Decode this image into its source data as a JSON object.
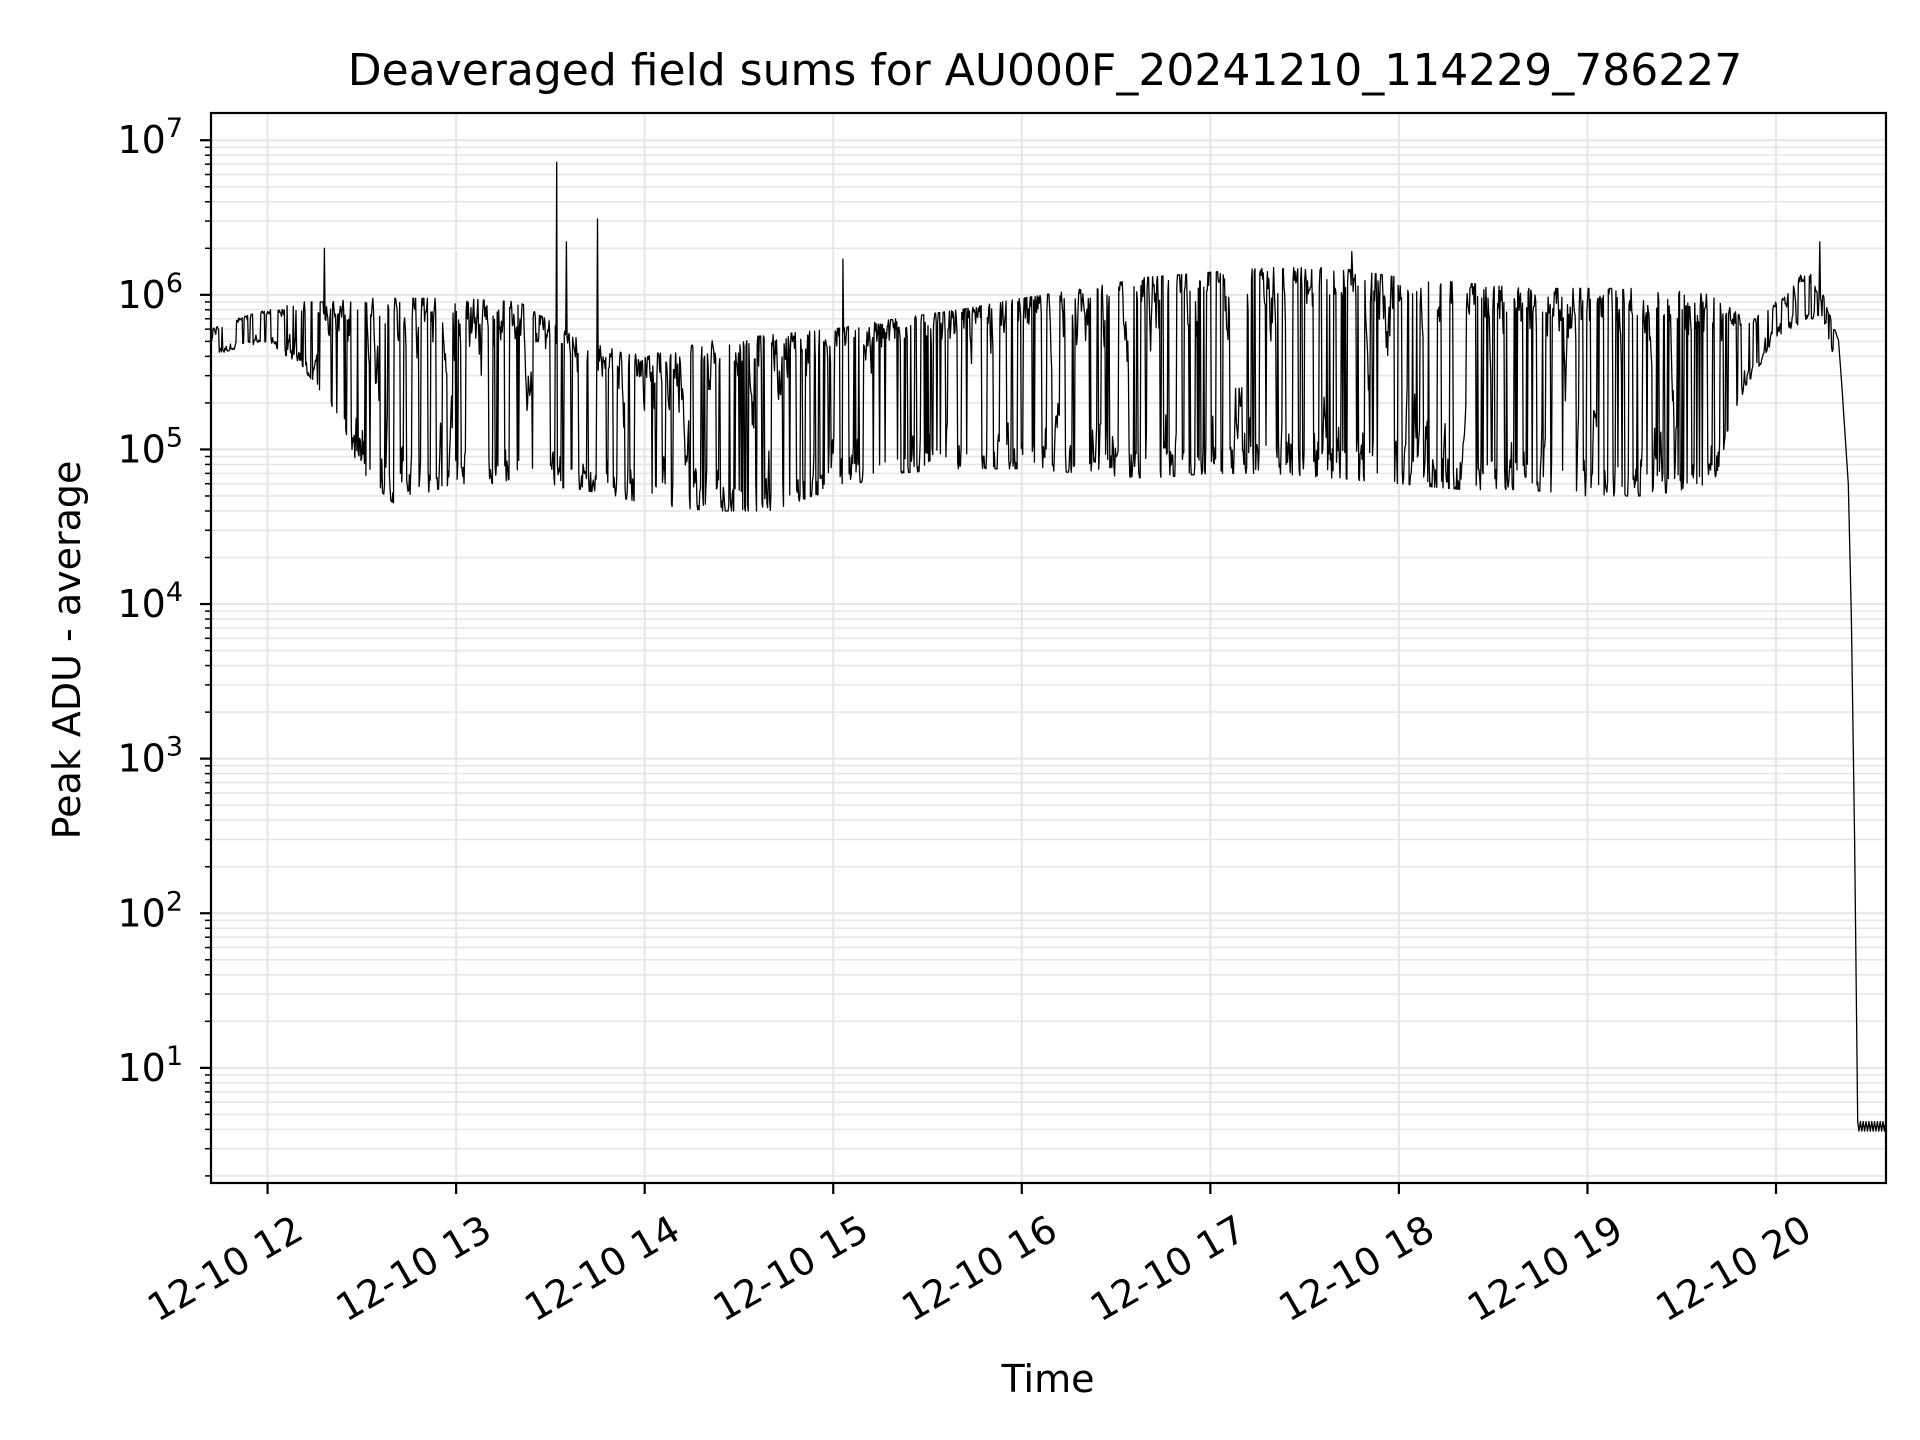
{
  "chart_data": {
    "type": "line",
    "title": "Deaveraged field sums for AU000F_20241210_114229_786227",
    "xlabel": "Time",
    "ylabel": "Peak ADU - average",
    "yscale": "log",
    "ylim": [
      1.8,
      15000000
    ],
    "xlim": [
      "2024-12-10 11:42",
      "2024-12-10 20:35"
    ],
    "grid": "on (major and minor)",
    "legend": "none",
    "x_ticks": [
      {
        "value": "2024-12-10 12:00",
        "label": "12-10 12"
      },
      {
        "value": "2024-12-10 13:00",
        "label": "12-10 13"
      },
      {
        "value": "2024-12-10 14:00",
        "label": "12-10 14"
      },
      {
        "value": "2024-12-10 15:00",
        "label": "12-10 15"
      },
      {
        "value": "2024-12-10 16:00",
        "label": "12-10 16"
      },
      {
        "value": "2024-12-10 17:00",
        "label": "12-10 17"
      },
      {
        "value": "2024-12-10 18:00",
        "label": "12-10 18"
      },
      {
        "value": "2024-12-10 19:00",
        "label": "12-10 19"
      },
      {
        "value": "2024-12-10 20:00",
        "label": "12-10 20"
      }
    ],
    "y_ticks": [
      {
        "value": 10,
        "base": "10",
        "exp": "1"
      },
      {
        "value": 100,
        "base": "10",
        "exp": "2"
      },
      {
        "value": 1000,
        "base": "10",
        "exp": "3"
      },
      {
        "value": 10000,
        "base": "10",
        "exp": "4"
      },
      {
        "value": 100000,
        "base": "10",
        "exp": "5"
      },
      {
        "value": 1000000,
        "base": "10",
        "exp": "6"
      },
      {
        "value": 10000000,
        "base": "10",
        "exp": "7"
      }
    ],
    "series": [
      {
        "color": "#000000",
        "envelope": [
          {
            "x": "2024-12-10 11:42",
            "low": 400000,
            "high": 600000
          },
          {
            "x": "2024-12-10 11:50",
            "low": 450000,
            "high": 700000
          },
          {
            "x": "2024-12-10 12:00",
            "low": 500000,
            "high": 800000
          },
          {
            "x": "2024-12-10 12:10",
            "low": 350000,
            "high": 900000
          },
          {
            "x": "2024-12-10 12:20",
            "low": 200000,
            "high": 900000
          },
          {
            "x": "2024-12-10 12:30",
            "low": 70000,
            "high": 950000
          },
          {
            "x": "2024-12-10 12:40",
            "low": 45000,
            "high": 950000
          },
          {
            "x": "2024-12-10 13:00",
            "low": 60000,
            "high": 950000
          },
          {
            "x": "2024-12-10 13:20",
            "low": 60000,
            "high": 900000
          },
          {
            "x": "2024-12-10 13:40",
            "low": 55000,
            "high": 500000
          },
          {
            "x": "2024-12-10 14:00",
            "low": 45000,
            "high": 400000
          },
          {
            "x": "2024-12-10 14:20",
            "low": 40000,
            "high": 500000
          },
          {
            "x": "2024-12-10 14:40",
            "low": 40000,
            "high": 550000
          },
          {
            "x": "2024-12-10 15:00",
            "low": 55000,
            "high": 600000
          },
          {
            "x": "2024-12-10 15:20",
            "low": 70000,
            "high": 700000
          },
          {
            "x": "2024-12-10 15:40",
            "low": 75000,
            "high": 800000
          },
          {
            "x": "2024-12-10 16:00",
            "low": 75000,
            "high": 950000
          },
          {
            "x": "2024-12-10 16:20",
            "low": 70000,
            "high": 1100000
          },
          {
            "x": "2024-12-10 16:40",
            "low": 65000,
            "high": 1300000
          },
          {
            "x": "2024-12-10 17:00",
            "low": 70000,
            "high": 1400000
          },
          {
            "x": "2024-12-10 17:20",
            "low": 70000,
            "high": 1500000
          },
          {
            "x": "2024-12-10 17:40",
            "low": 65000,
            "high": 1500000
          },
          {
            "x": "2024-12-10 18:00",
            "low": 60000,
            "high": 1300000
          },
          {
            "x": "2024-12-10 18:20",
            "low": 55000,
            "high": 1200000
          },
          {
            "x": "2024-12-10 18:40",
            "low": 55000,
            "high": 1100000
          },
          {
            "x": "2024-12-10 19:00",
            "low": 50000,
            "high": 1100000
          },
          {
            "x": "2024-12-10 19:20",
            "low": 50000,
            "high": 1100000
          },
          {
            "x": "2024-12-10 19:40",
            "low": 60000,
            "high": 1000000
          },
          {
            "x": "2024-12-10 19:50",
            "low": 250000,
            "high": 700000
          },
          {
            "x": "2024-12-10 20:00",
            "low": 500000,
            "high": 900000
          },
          {
            "x": "2024-12-10 20:10",
            "low": 700000,
            "high": 1500000
          },
          {
            "x": "2024-12-10 20:15",
            "low": 700000,
            "high": 1000000
          },
          {
            "x": "2024-12-10 20:20",
            "low": 300000,
            "high": 500000
          }
        ],
        "spikes": [
          {
            "x": "2024-12-10 12:18",
            "value": 2000000
          },
          {
            "x": "2024-12-10 13:32",
            "value": 7200000
          },
          {
            "x": "2024-12-10 13:35",
            "value": 2200000
          },
          {
            "x": "2024-12-10 13:45",
            "value": 3100000
          },
          {
            "x": "2024-12-10 15:03",
            "value": 1700000
          },
          {
            "x": "2024-12-10 17:45",
            "value": 1900000
          },
          {
            "x": "2024-12-10 20:14",
            "value": 2200000
          }
        ],
        "dropoff": [
          {
            "x": "2024-12-10 20:21",
            "value": 250000
          },
          {
            "x": "2024-12-10 20:23",
            "value": 60000
          },
          {
            "x": "2024-12-10 20:24",
            "value": 8000
          },
          {
            "x": "2024-12-10 20:25",
            "value": 300
          },
          {
            "x": "2024-12-10 20:26",
            "value": 4.5
          }
        ],
        "tail": {
          "from": "2024-12-10 20:26",
          "to": "2024-12-10 20:35",
          "low": 3.9,
          "high": 4.5
        }
      }
    ]
  }
}
